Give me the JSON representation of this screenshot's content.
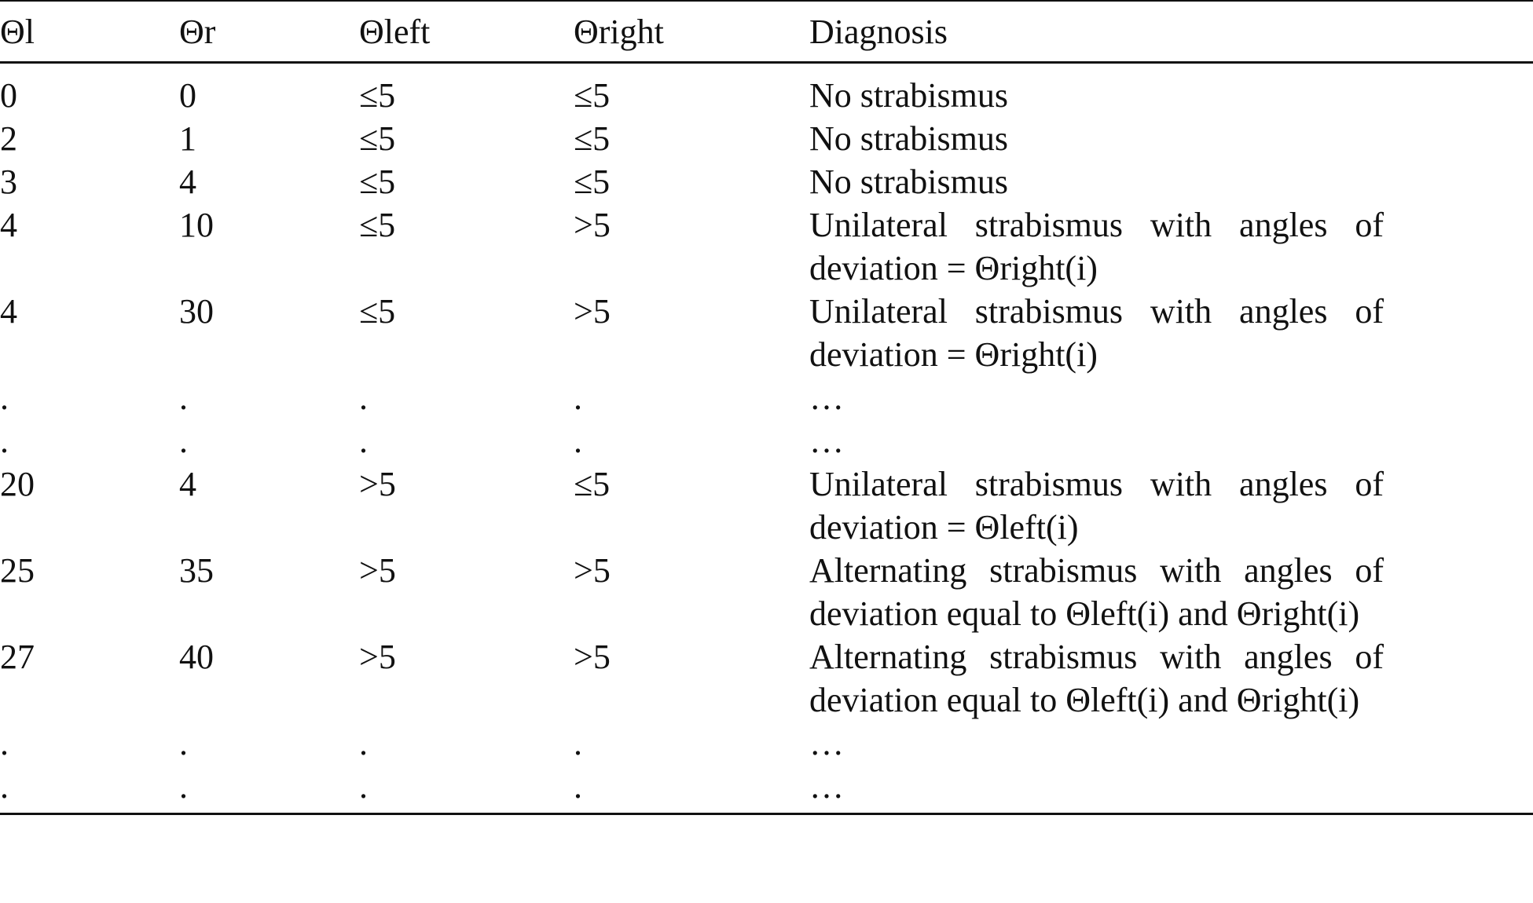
{
  "table": {
    "header": [
      "Θl",
      "Θr",
      "Θleft",
      "Θright",
      "Diagnosis"
    ],
    "rows": [
      [
        "0",
        "0",
        "≤5",
        "≤5",
        "No strabismus"
      ],
      [
        "2",
        "1",
        "≤5",
        "≤5",
        "No strabismus"
      ],
      [
        "3",
        "4",
        "≤5",
        "≤5",
        "No strabismus"
      ],
      [
        "4",
        "10",
        "≤5",
        ">5",
        "Unilateral strabismus with angles of deviation = Θright(i)"
      ],
      [
        "4",
        "30",
        "≤5",
        ">5",
        "Unilateral strabismus with angles of deviation = Θright(i)"
      ],
      [
        ".",
        ".",
        ".",
        ".",
        "…"
      ],
      [
        ".",
        ".",
        ".",
        ".",
        "…"
      ],
      [
        "20",
        "4",
        ">5",
        "≤5",
        "Unilateral strabismus with angles of deviation = Θleft(i)"
      ],
      [
        "25",
        "35",
        ">5",
        ">5",
        "Alternating strabismus with angles of deviation equal to Θleft(i) and Θright(i)"
      ],
      [
        "27",
        "40",
        ">5",
        ">5",
        "Alternating strabismus with angles of deviation equal to Θleft(i) and Θright(i)"
      ],
      [
        ".",
        ".",
        ".",
        ".",
        "…"
      ],
      [
        ".",
        ".",
        ".",
        ".",
        "…"
      ]
    ]
  }
}
